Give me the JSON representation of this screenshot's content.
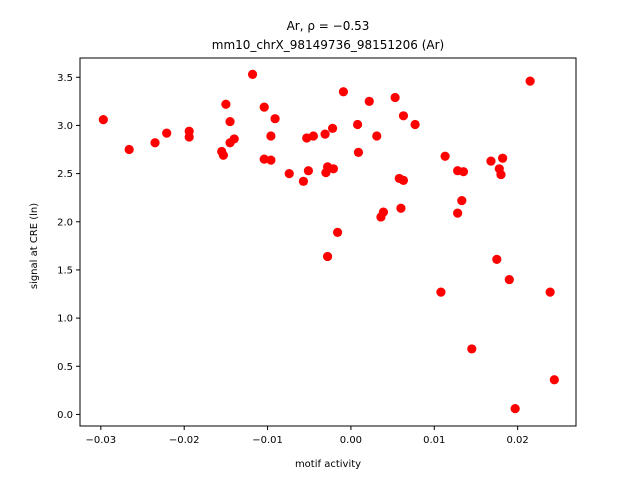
{
  "chart_data": {
    "type": "scatter",
    "title_line1": "Ar, ρ = −0.53",
    "title_line2": "mm10_chrX_98149736_98151206 (Ar)",
    "xlabel": "motif activity",
    "ylabel": "signal at CRE (ln)",
    "xlim": [
      -0.0325,
      0.027
    ],
    "ylim": [
      -0.12,
      3.7
    ],
    "xticks": [
      -0.03,
      -0.02,
      -0.01,
      0.0,
      0.01,
      0.02
    ],
    "xtick_labels": [
      "−0.03",
      "−0.02",
      "−0.01",
      "0.00",
      "0.01",
      "0.02"
    ],
    "yticks": [
      0.0,
      0.5,
      1.0,
      1.5,
      2.0,
      2.5,
      3.0,
      3.5
    ],
    "ytick_labels": [
      "0.0",
      "0.5",
      "1.0",
      "1.5",
      "2.0",
      "2.5",
      "3.0",
      "3.5"
    ],
    "marker_color": "#ff0000",
    "grid": false,
    "legend": "none",
    "points": [
      [
        -0.0297,
        3.06
      ],
      [
        -0.0266,
        2.75
      ],
      [
        -0.0235,
        2.82
      ],
      [
        -0.0221,
        2.92
      ],
      [
        -0.0194,
        2.94
      ],
      [
        -0.0194,
        2.88
      ],
      [
        -0.0155,
        2.73
      ],
      [
        -0.0153,
        2.69
      ],
      [
        -0.015,
        3.22
      ],
      [
        -0.0145,
        3.04
      ],
      [
        -0.0145,
        2.82
      ],
      [
        -0.014,
        2.86
      ],
      [
        -0.0118,
        3.53
      ],
      [
        -0.0104,
        3.19
      ],
      [
        -0.0104,
        2.65
      ],
      [
        -0.0096,
        2.89
      ],
      [
        -0.0096,
        2.64
      ],
      [
        -0.0091,
        3.07
      ],
      [
        -0.0074,
        2.5
      ],
      [
        -0.0057,
        2.42
      ],
      [
        -0.0053,
        2.87
      ],
      [
        -0.0051,
        2.53
      ],
      [
        -0.0045,
        2.89
      ],
      [
        -0.0031,
        2.91
      ],
      [
        -0.003,
        2.51
      ],
      [
        -0.0028,
        2.57
      ],
      [
        -0.0028,
        1.64
      ],
      [
        -0.0022,
        2.97
      ],
      [
        -0.0021,
        2.55
      ],
      [
        -0.0016,
        1.89
      ],
      [
        -0.0009,
        3.35
      ],
      [
        0.0008,
        3.01
      ],
      [
        0.0009,
        2.72
      ],
      [
        0.0022,
        3.25
      ],
      [
        0.0031,
        2.89
      ],
      [
        0.0036,
        2.05
      ],
      [
        0.0039,
        2.1
      ],
      [
        0.0053,
        3.29
      ],
      [
        0.0058,
        2.45
      ],
      [
        0.006,
        2.14
      ],
      [
        0.0063,
        3.1
      ],
      [
        0.0063,
        2.43
      ],
      [
        0.0077,
        3.01
      ],
      [
        0.0108,
        1.27
      ],
      [
        0.0113,
        2.68
      ],
      [
        0.0128,
        2.53
      ],
      [
        0.0128,
        2.09
      ],
      [
        0.0133,
        2.22
      ],
      [
        0.0135,
        2.52
      ],
      [
        0.0145,
        0.68
      ],
      [
        0.0168,
        2.63
      ],
      [
        0.0175,
        1.61
      ],
      [
        0.0178,
        2.55
      ],
      [
        0.018,
        2.49
      ],
      [
        0.0182,
        2.66
      ],
      [
        0.019,
        1.4
      ],
      [
        0.0197,
        0.06
      ],
      [
        0.0215,
        3.46
      ],
      [
        0.0239,
        1.27
      ],
      [
        0.0244,
        0.36
      ]
    ]
  }
}
